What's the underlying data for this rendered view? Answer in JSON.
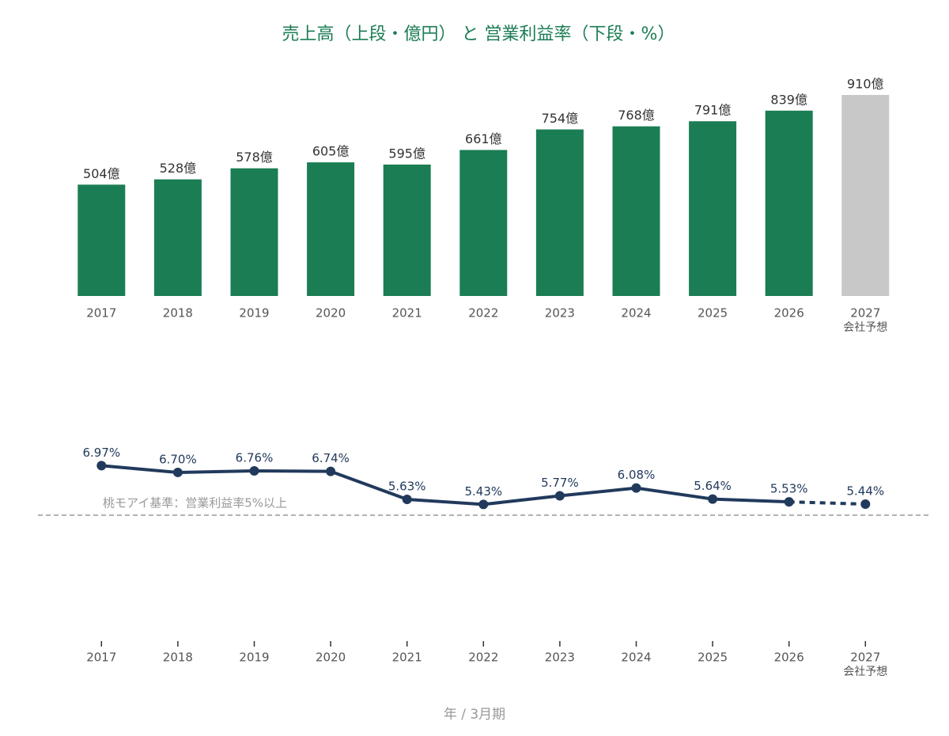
{
  "chart_data": [
    {
      "type": "bar",
      "title": "売上高（上段・億円） と 営業利益率（下段・%）",
      "categories": [
        "2017",
        "2018",
        "2019",
        "2020",
        "2021",
        "2022",
        "2023",
        "2024",
        "2025",
        "2026",
        "2027"
      ],
      "category_notes": [
        null,
        null,
        null,
        null,
        null,
        null,
        null,
        null,
        null,
        null,
        "会社予想"
      ],
      "values": [
        504,
        528,
        578,
        605,
        595,
        661,
        754,
        768,
        791,
        839,
        910
      ],
      "value_labels": [
        "504億",
        "528億",
        "578億",
        "605億",
        "595億",
        "661億",
        "754億",
        "768億",
        "791億",
        "839億",
        "910億"
      ],
      "forecast": [
        false,
        false,
        false,
        false,
        false,
        false,
        false,
        false,
        false,
        false,
        true
      ],
      "color": "#1b7d53",
      "forecast_color": "#c8c8c8",
      "ylim": [
        0,
        910
      ]
    },
    {
      "type": "line",
      "xlabel": "年 / 3月期",
      "categories": [
        "2017",
        "2018",
        "2019",
        "2020",
        "2021",
        "2022",
        "2023",
        "2024",
        "2025",
        "2026",
        "2027"
      ],
      "category_notes": [
        null,
        null,
        null,
        null,
        null,
        null,
        null,
        null,
        null,
        null,
        "会社予想"
      ],
      "values": [
        6.97,
        6.7,
        6.76,
        6.74,
        5.63,
        5.43,
        5.77,
        6.08,
        5.64,
        5.53,
        5.44
      ],
      "value_labels": [
        "6.97%",
        "6.70%",
        "6.76%",
        "6.74%",
        "5.63%",
        "5.43%",
        "5.77%",
        "6.08%",
        "5.64%",
        "5.53%",
        "5.44%"
      ],
      "forecast": [
        false,
        false,
        false,
        false,
        false,
        false,
        false,
        false,
        false,
        false,
        true
      ],
      "color": "#213a5c",
      "reference_line": {
        "value": 5,
        "label": "桃モアイ基準：営業利益率5%以上",
        "color": "#999999"
      },
      "ylim": [
        0,
        10
      ]
    }
  ]
}
